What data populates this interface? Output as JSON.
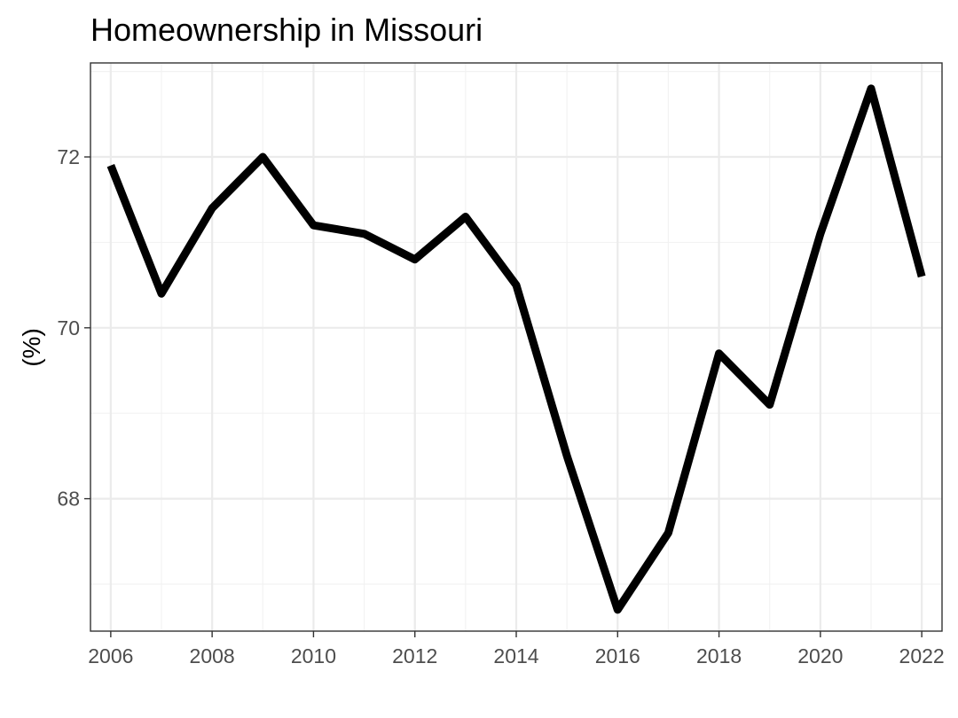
{
  "chart_data": {
    "type": "line",
    "title": "Homeownership in Missouri",
    "xlabel": "",
    "ylabel": "(%)",
    "x": [
      2006,
      2007,
      2008,
      2009,
      2010,
      2011,
      2012,
      2013,
      2014,
      2015,
      2016,
      2017,
      2018,
      2019,
      2020,
      2021,
      2022
    ],
    "series": [
      {
        "values": [
          71.9,
          70.4,
          71.4,
          72.0,
          71.2,
          71.1,
          70.8,
          71.3,
          70.5,
          68.5,
          66.7,
          67.6,
          69.7,
          69.1,
          71.1,
          72.8,
          70.6
        ]
      }
    ],
    "xlim": [
      2005.6,
      2022.4
    ],
    "ylim": [
      66.45,
      73.1
    ],
    "x_ticks": [
      2006,
      2008,
      2010,
      2012,
      2014,
      2016,
      2018,
      2020,
      2022
    ],
    "x_tick_labels": [
      "2006",
      "2008",
      "2010",
      "2012",
      "2014",
      "2016",
      "2018",
      "2020",
      "2022"
    ],
    "y_ticks": [
      68,
      70,
      72
    ],
    "y_tick_labels": [
      "68",
      "70",
      "72"
    ],
    "grid": true,
    "legend": "none",
    "colors": {
      "line": "#000000",
      "grid": "#ebebeb",
      "border": "#333333",
      "tick_text": "#4d4d4d"
    }
  }
}
